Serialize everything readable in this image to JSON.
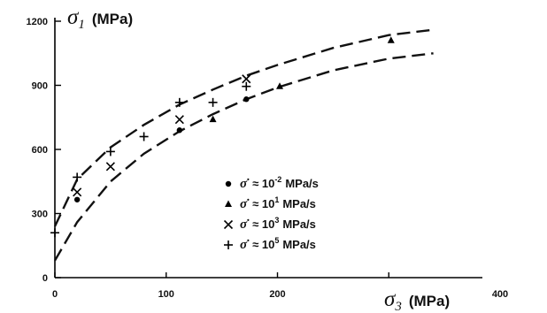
{
  "chart_data": {
    "type": "scatter",
    "title": "",
    "xlabel": {
      "symbol": "σ",
      "subscript": "3",
      "unit": "(MPa)"
    },
    "ylabel": {
      "symbol": "σ",
      "subscript": "1",
      "unit": "(MPa)"
    },
    "xlim": [
      0,
      400
    ],
    "ylim": [
      0,
      1200
    ],
    "x_ticks": [
      0,
      100,
      200,
      300,
      400
    ],
    "x_tick_labels": [
      "0",
      "100",
      "200",
      "",
      "400"
    ],
    "y_ticks": [
      0,
      300,
      600,
      900,
      1200
    ],
    "y_tick_labels": [
      "0",
      "300",
      "600",
      "900",
      "1200"
    ],
    "grid": false,
    "legend_position": "center-right",
    "series": [
      {
        "marker": "circle",
        "legend": {
          "symbol": "σ̇",
          "approx": "≈",
          "base": "10",
          "exponent": "-2",
          "unit": "MPa/s"
        },
        "x": [
          20,
          112,
          172
        ],
        "y": [
          365,
          690,
          835
        ]
      },
      {
        "marker": "triangle",
        "legend": {
          "symbol": "σ̇",
          "approx": "≈",
          "base": "10",
          "exponent": "1",
          "unit": "MPa/s"
        },
        "x": [
          142,
          202,
          302
        ],
        "y": [
          740,
          895,
          1110
        ]
      },
      {
        "marker": "cross",
        "legend": {
          "symbol": "σ̇",
          "approx": "≈",
          "base": "10",
          "exponent": "3",
          "unit": "MPa/s"
        },
        "x": [
          20,
          50,
          112,
          172
        ],
        "y": [
          400,
          520,
          740,
          930
        ]
      },
      {
        "marker": "plus",
        "legend": {
          "symbol": "σ̇",
          "approx": "≈",
          "base": "10",
          "exponent": "5",
          "unit": "MPa/s"
        },
        "x": [
          0,
          20,
          50,
          80,
          112,
          142,
          172
        ],
        "y": [
          210,
          470,
          590,
          660,
          820,
          820,
          895
        ]
      }
    ],
    "fit_curves": [
      {
        "style": "dashed",
        "x": [
          0,
          20,
          50,
          80,
          112,
          142,
          172,
          200,
          250,
          300,
          340
        ],
        "y": [
          240,
          460,
          610,
          715,
          810,
          880,
          945,
          995,
          1075,
          1135,
          1160
        ]
      },
      {
        "style": "dashed",
        "x": [
          0,
          20,
          50,
          80,
          112,
          142,
          172,
          200,
          250,
          300,
          340
        ],
        "y": [
          80,
          260,
          450,
          580,
          685,
          765,
          835,
          890,
          970,
          1025,
          1050
        ]
      }
    ]
  }
}
